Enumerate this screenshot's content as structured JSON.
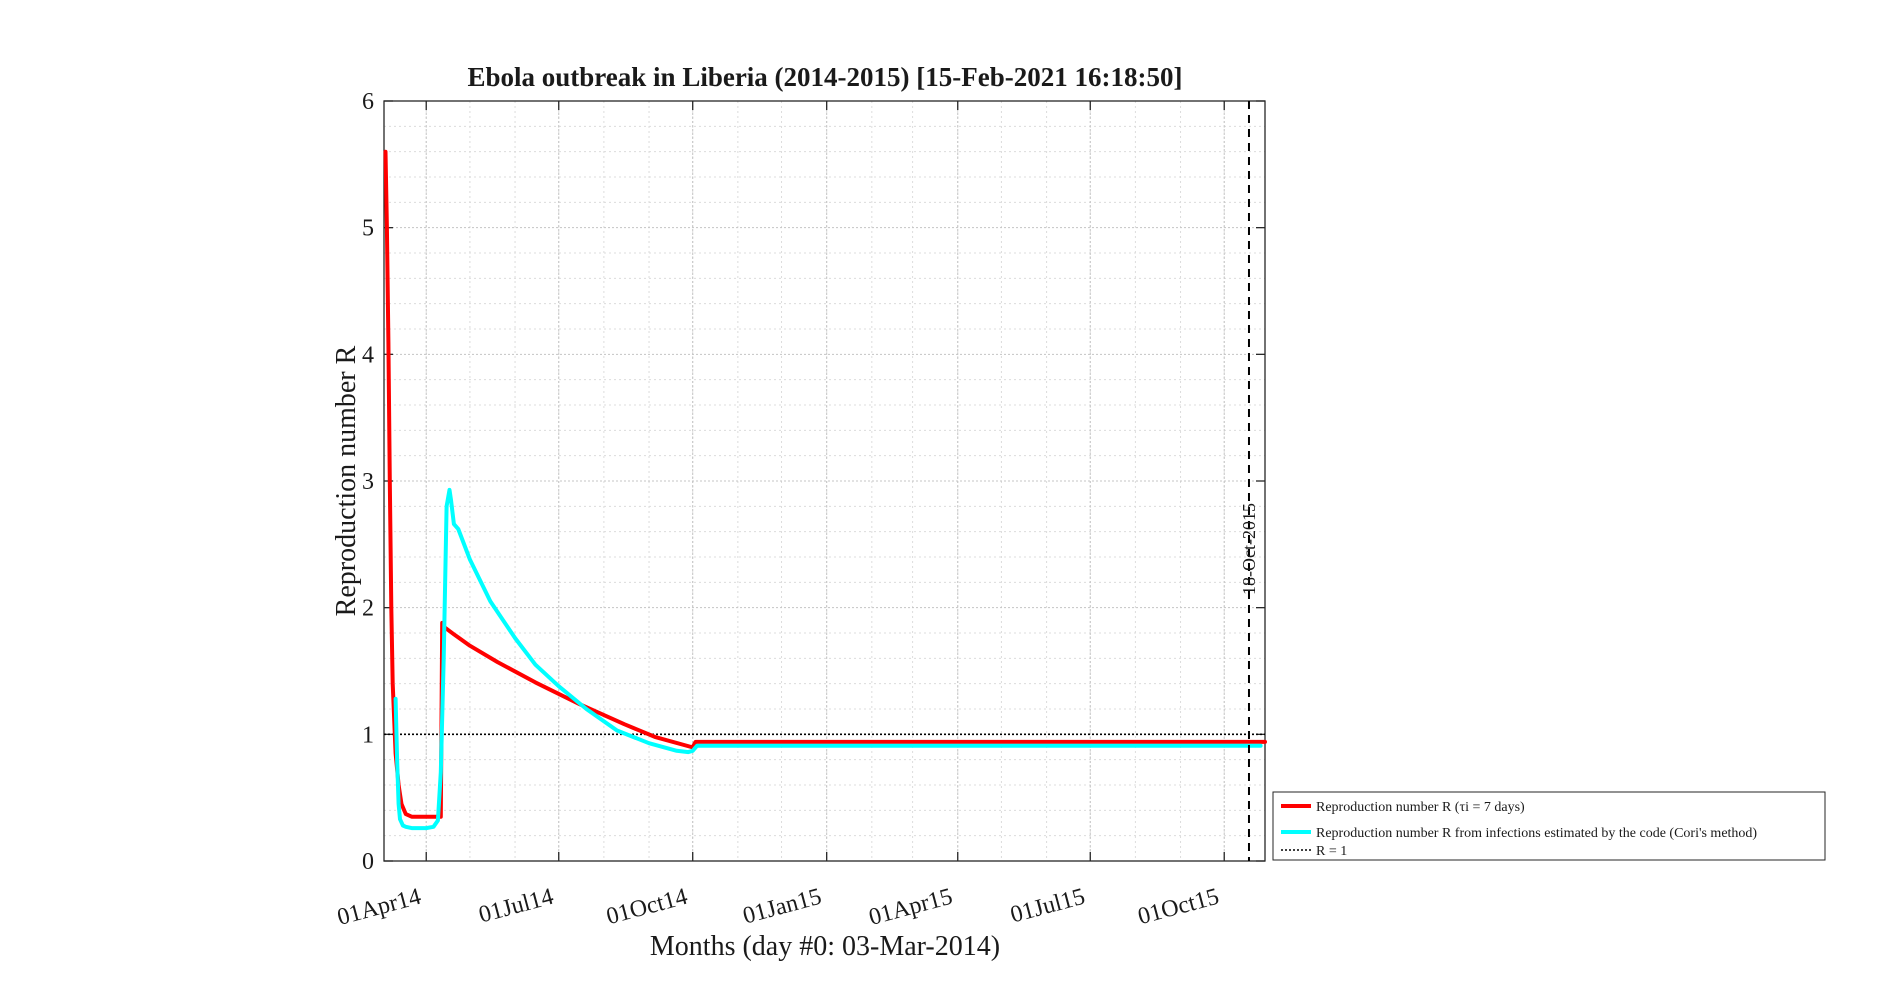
{
  "chart_data": {
    "type": "line",
    "title": "Ebola outbreak in Liberia (2014-2015) [15-Feb-2021 16:18:50]",
    "xlabel": "Months (day #0: 03-Mar-2014)",
    "ylabel": "Reproduction number R",
    "xlim": [
      "2014-03-03",
      "2015-10-29"
    ],
    "ylim": [
      0,
      6
    ],
    "yticks": [
      0,
      1,
      2,
      3,
      4,
      5,
      6
    ],
    "yticklabels": [
      "0",
      "1",
      "2",
      "3",
      "4",
      "5",
      "6"
    ],
    "xticks": [
      {
        "date": "2014-04-01",
        "label": "01Apr14"
      },
      {
        "date": "2014-07-01",
        "label": "01Jul14"
      },
      {
        "date": "2014-10-01",
        "label": "01Oct14"
      },
      {
        "date": "2015-01-01",
        "label": "01Jan15"
      },
      {
        "date": "2015-04-01",
        "label": "01Apr15"
      },
      {
        "date": "2015-07-01",
        "label": "01Jul15"
      },
      {
        "date": "2015-10-01",
        "label": "01Oct15"
      }
    ],
    "grid": true,
    "minor_grid": true,
    "legend_position": "outside-right-bottom",
    "series": [
      {
        "name": "Reproduction number R (τi = 7 days)",
        "color": "#ff0000",
        "x": [
          "2014-03-04",
          "2014-03-05",
          "2014-03-06",
          "2014-03-07",
          "2014-03-08",
          "2014-03-09",
          "2014-03-11",
          "2014-03-13",
          "2014-03-15",
          "2014-03-18",
          "2014-03-22",
          "2014-04-01",
          "2014-04-11",
          "2014-04-12",
          "2014-04-13",
          "2014-04-20",
          "2014-05-01",
          "2014-05-20",
          "2014-06-15",
          "2014-07-15",
          "2014-08-15",
          "2014-09-05",
          "2014-09-30",
          "2014-10-01",
          "2014-10-03",
          "2015-01-01",
          "2015-06-01",
          "2015-10-29"
        ],
        "y": [
          5.6,
          5.0,
          4.1,
          3.0,
          2.0,
          1.4,
          0.85,
          0.6,
          0.45,
          0.37,
          0.35,
          0.35,
          0.35,
          1.88,
          1.85,
          1.79,
          1.7,
          1.57,
          1.41,
          1.24,
          1.08,
          0.98,
          0.9,
          0.9,
          0.94,
          0.94,
          0.94,
          0.94
        ]
      },
      {
        "name": "Reproduction number R from infections estimated by the code (Cori's method)",
        "color": "#00ffff",
        "x": [
          "2014-03-11",
          "2014-03-12",
          "2014-03-13",
          "2014-03-14",
          "2014-03-16",
          "2014-03-18",
          "2014-03-22",
          "2014-04-01",
          "2014-04-06",
          "2014-04-09",
          "2014-04-11",
          "2014-04-13",
          "2014-04-15",
          "2014-04-17",
          "2014-04-18",
          "2014-04-20",
          "2014-04-23",
          "2014-05-01",
          "2014-05-15",
          "2014-06-01",
          "2014-06-15",
          "2014-07-01",
          "2014-07-20",
          "2014-08-10",
          "2014-09-01",
          "2014-09-20",
          "2014-09-28",
          "2014-10-01",
          "2014-10-04",
          "2015-01-01",
          "2015-06-01",
          "2015-10-26"
        ],
        "y": [
          1.28,
          0.8,
          0.45,
          0.33,
          0.28,
          0.27,
          0.26,
          0.26,
          0.27,
          0.32,
          0.7,
          1.6,
          2.8,
          2.93,
          2.85,
          2.66,
          2.62,
          2.38,
          2.05,
          1.76,
          1.55,
          1.38,
          1.2,
          1.03,
          0.93,
          0.87,
          0.86,
          0.87,
          0.91,
          0.91,
          0.91,
          0.91
        ]
      },
      {
        "name": "R = 1",
        "color": "#000000",
        "dash": "dotted",
        "x": [
          "2014-03-03",
          "2015-10-29"
        ],
        "y": [
          1,
          1
        ]
      }
    ],
    "annotations": [
      {
        "type": "vline",
        "date": "2015-10-18",
        "label": "18-Oct-2015",
        "style": "dashed",
        "color": "#000000"
      }
    ]
  }
}
